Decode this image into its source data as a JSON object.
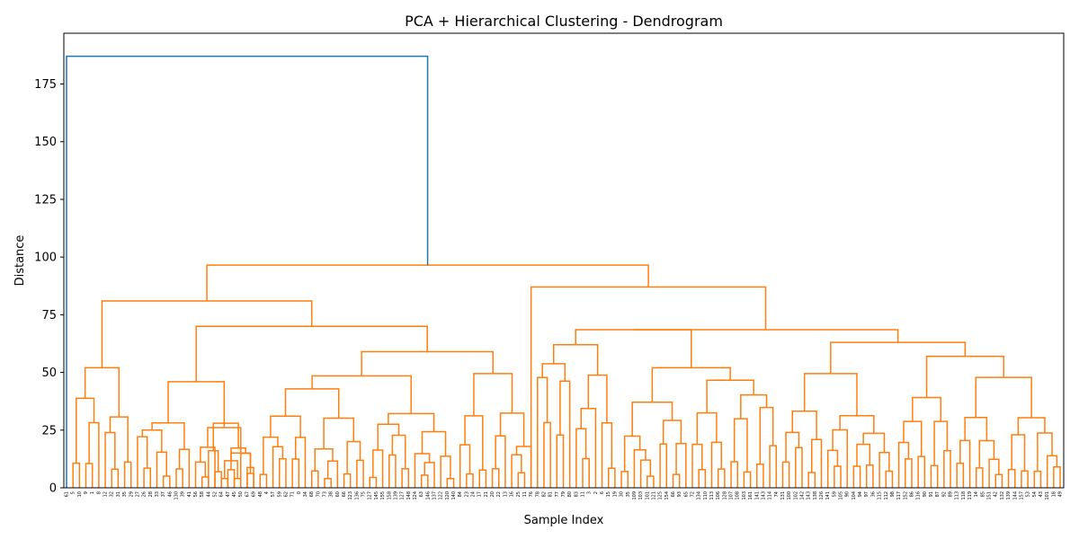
{
  "chart_data": {
    "type": "dendrogram",
    "title": "PCA + Hierarchical Clustering - Dendrogram",
    "xlabel": "Sample Index",
    "ylabel": "Distance",
    "ylim": [
      0,
      197
    ],
    "yticks": [
      0,
      25,
      50,
      75,
      100,
      125,
      150,
      175
    ],
    "grid": false,
    "colors": {
      "left_cluster": "#ff7f0e",
      "top_link": "#1f77b4",
      "axis": "#000000"
    },
    "leaves": [
      "61",
      "5",
      "10",
      "9",
      "1",
      "8",
      "12",
      "32",
      "31",
      "35",
      "29",
      "27",
      "26",
      "28",
      "33",
      "37",
      "46",
      "130",
      "39",
      "41",
      "56",
      "58",
      "44",
      "52",
      "64",
      "47",
      "45",
      "50",
      "67",
      "69",
      "48",
      "4",
      "57",
      "59",
      "62",
      "71",
      "0",
      "34",
      "68",
      "70",
      "73",
      "38",
      "60",
      "66",
      "123",
      "136",
      "75",
      "127",
      "145",
      "155",
      "158",
      "139",
      "127",
      "148",
      "124",
      "63",
      "146",
      "137",
      "122",
      "120",
      "140",
      "84",
      "23",
      "24",
      "17",
      "21",
      "20",
      "22",
      "13",
      "16",
      "25",
      "11",
      "76",
      "78",
      "82",
      "81",
      "77",
      "79",
      "80",
      "83",
      "11",
      "3",
      "2",
      "6",
      "15",
      "19",
      "30",
      "35",
      "109",
      "103",
      "101",
      "121",
      "125",
      "154",
      "66",
      "93",
      "65",
      "72",
      "134",
      "110",
      "113",
      "106",
      "128",
      "107",
      "108",
      "103",
      "161",
      "141",
      "143",
      "114",
      "74",
      "131",
      "100",
      "102",
      "142",
      "143",
      "138",
      "126",
      "141",
      "59",
      "105",
      "90",
      "104",
      "94",
      "97",
      "36",
      "115",
      "112",
      "98",
      "117",
      "152",
      "86",
      "116",
      "90",
      "91",
      "87",
      "92",
      "89",
      "113",
      "118",
      "119",
      "14",
      "85",
      "151",
      "42",
      "132",
      "139",
      "144",
      "157",
      "53",
      "54",
      "43",
      "101",
      "18",
      "49"
    ],
    "links": [
      {
        "distance": 187,
        "children": [
          "left_cluster",
          "leaf_61"
        ]
      },
      {
        "distance": 96.5,
        "children": [
          "cluster_A",
          "cluster_B"
        ]
      },
      {
        "distance": 81,
        "children": [
          "c_a1",
          "c_a2"
        ]
      },
      {
        "distance": 70,
        "children": [
          "c_a3",
          "c_a4"
        ]
      },
      {
        "distance": 64,
        "children": [
          "c_a5",
          "c_a6"
        ]
      },
      {
        "distance": 59,
        "children": [
          "c_a7",
          "c_a8"
        ]
      },
      {
        "distance": 87,
        "children": [
          "cluster_B1",
          "cluster_B2"
        ]
      },
      {
        "distance": 68.5,
        "children": [
          "c_b3",
          "c_b4"
        ]
      },
      {
        "distance": 63,
        "children": [
          "c_b5",
          "c_b6"
        ]
      },
      {
        "distance": 62,
        "children": [
          "c_b7",
          "c_b8"
        ]
      },
      {
        "distance": 57,
        "children": [
          "c_b9",
          "c_b10"
        ]
      },
      {
        "distance": 52,
        "children": [
          "c_b11",
          "c_b12"
        ]
      },
      {
        "distance": 49.5,
        "children": [
          "c_b13",
          "c_b14"
        ]
      },
      {
        "distance": 49,
        "children": [
          "c_b15",
          "c_b16"
        ]
      },
      {
        "distance": 48.5,
        "children": [
          "c_a9",
          "c_a10"
        ]
      },
      {
        "distance": 47.5,
        "children": [
          "c_b17",
          "c_b18"
        ]
      },
      {
        "distance": 46,
        "children": [
          "c_a11",
          "c_a12"
        ]
      }
    ]
  }
}
